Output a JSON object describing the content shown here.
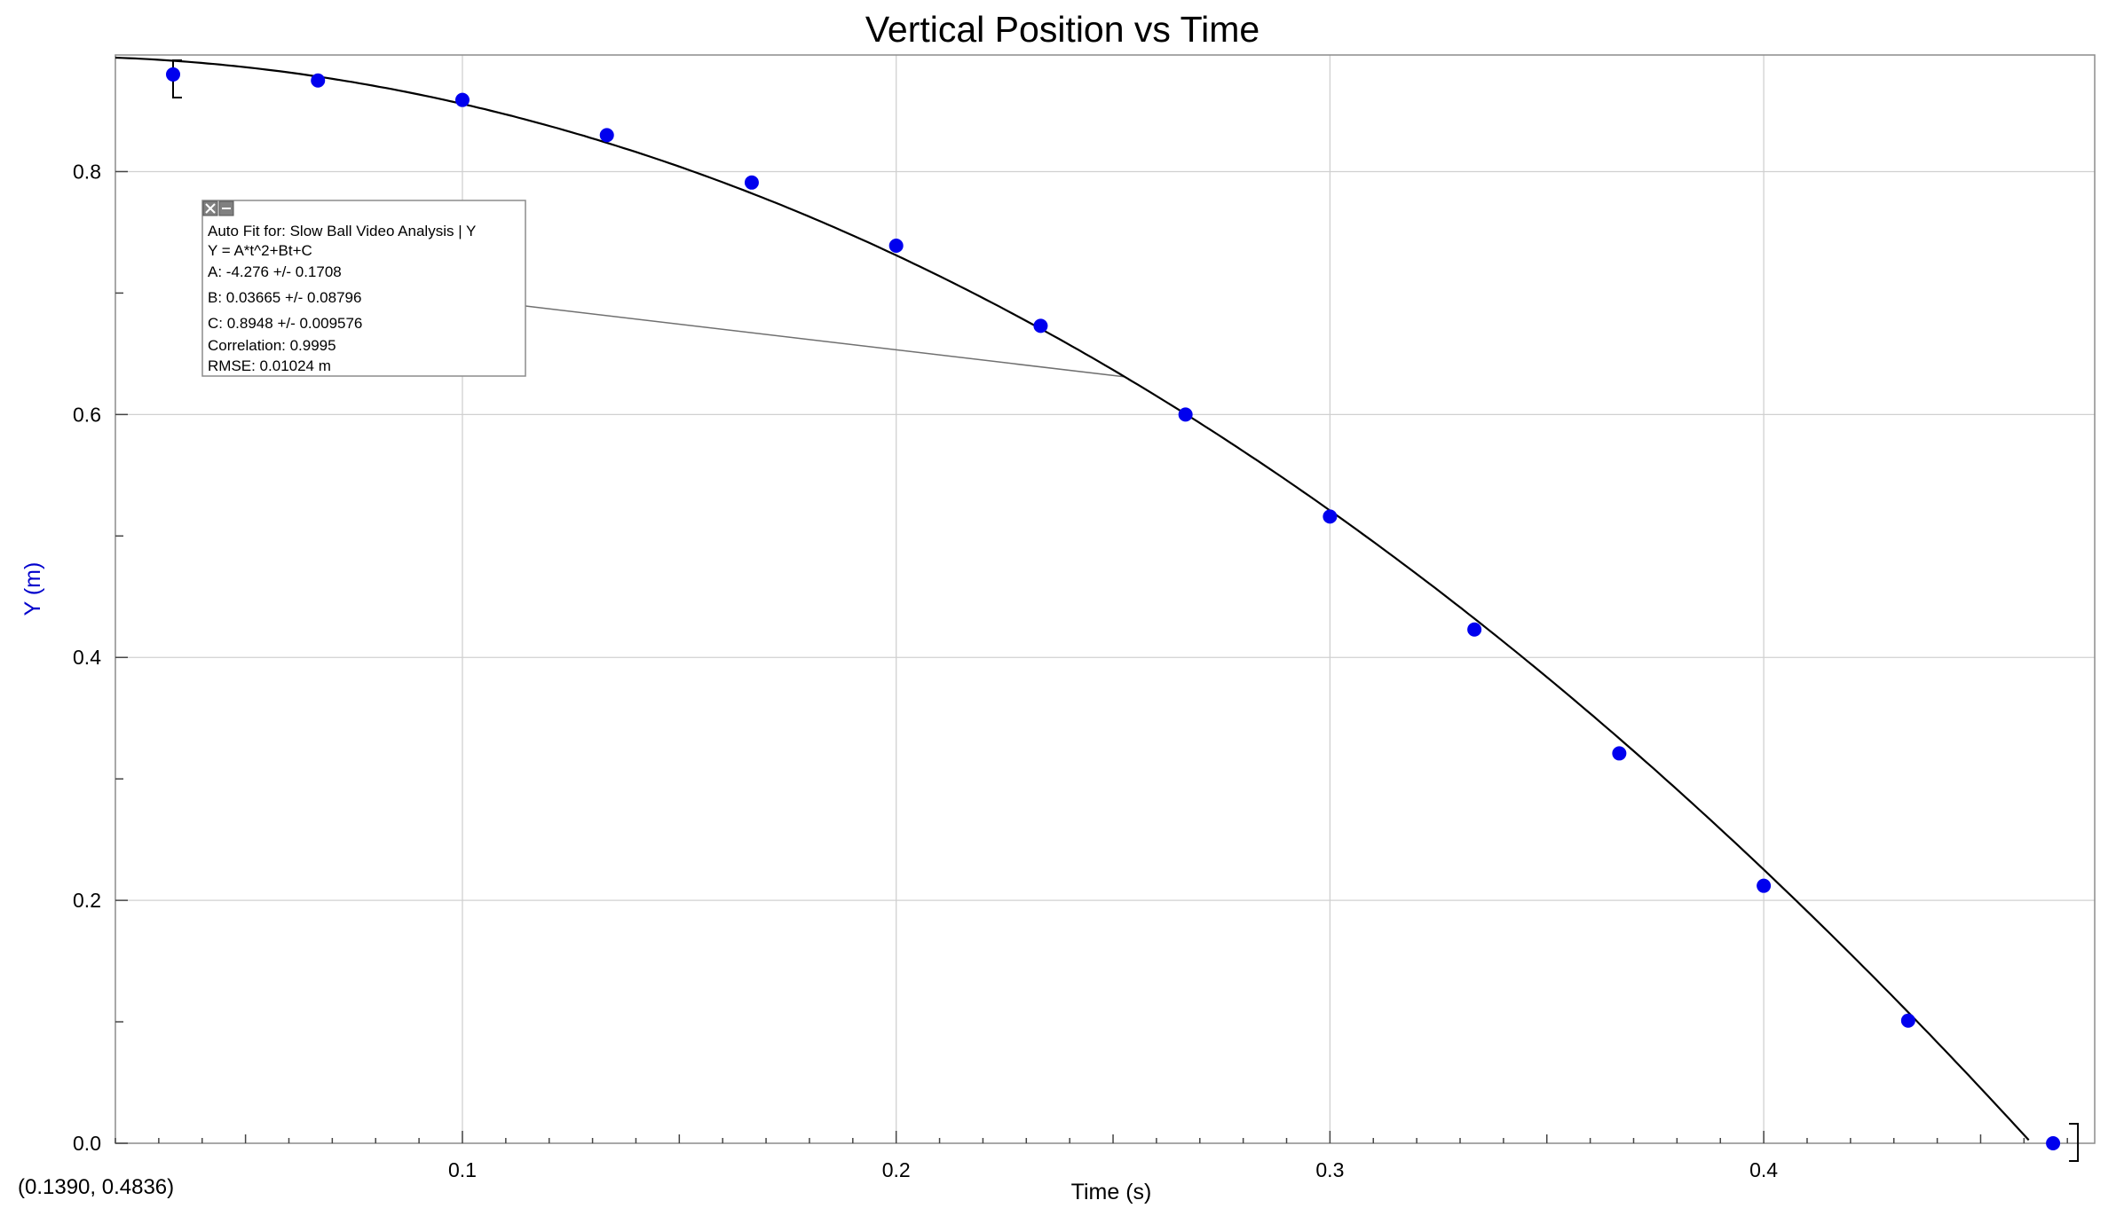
{
  "chart_data": {
    "type": "scatter",
    "title": "Vertical Position vs Time",
    "xlabel": "Time (s)",
    "ylabel": "Y (m)",
    "xlim": [
      0.02,
      0.4763
    ],
    "ylim": [
      0.0,
      0.896
    ],
    "x_ticks": [
      0.1,
      0.2,
      0.3,
      0.4
    ],
    "x_tick_labels": [
      "0.1",
      "0.2",
      "0.3",
      "0.4"
    ],
    "y_ticks": [
      0.0,
      0.2,
      0.4,
      0.6,
      0.8
    ],
    "y_tick_labels": [
      "0.0",
      "0.2",
      "0.4",
      "0.6",
      "0.8"
    ],
    "grid": true,
    "colors": {
      "points": "#0000ee",
      "fit_line": "#000000",
      "ylabel": "#0000cc",
      "grid": "#d0d0d0"
    },
    "series": [
      {
        "type": "scatter",
        "x": [
          0.0333,
          0.0667,
          0.1,
          0.1333,
          0.1667,
          0.2,
          0.2333,
          0.2667,
          0.3,
          0.3333,
          0.3667,
          0.4,
          0.4333,
          0.4667
        ],
        "y": [
          0.88,
          0.875,
          0.859,
          0.83,
          0.791,
          0.739,
          0.673,
          0.6,
          0.516,
          0.423,
          0.321,
          0.212,
          0.101,
          0.0
        ]
      },
      {
        "type": "line",
        "fit": "quadratic",
        "equation_coefficients": {
          "A": -4.276,
          "B": 0.03665,
          "C": 0.8948
        }
      }
    ],
    "fit_range": [
      0.0333,
      0.4667
    ]
  },
  "fit_box": {
    "lines": [
      "Auto Fit for: Slow Ball Video Analysis | Y",
      "Y = A*t^2+Bt+C",
      "A: -4.276 +/- 0.1708",
      "B: 0.03665 +/- 0.08796",
      "C: 0.8948 +/- 0.009576",
      "Correlation: 0.9995",
      "RMSE: 0.01024 m"
    ],
    "annotation_point": {
      "x": 0.2527
    }
  },
  "coord_readout": "(0.1390, 0.4836)"
}
